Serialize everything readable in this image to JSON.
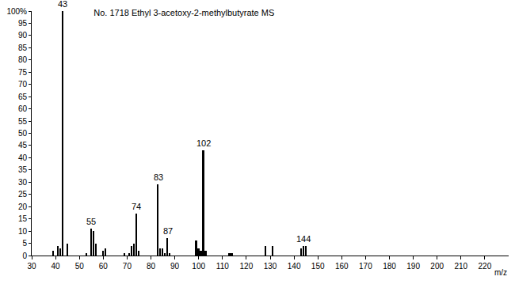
{
  "chart_data": {
    "type": "bar",
    "title": "No. 1718 Ethyl 3-acetoxy-2-methylbutyrate MS",
    "x_label": "m/z",
    "x": [
      39,
      41,
      42,
      43,
      45,
      53,
      55,
      56,
      57,
      60,
      61,
      69,
      71,
      72,
      73,
      74,
      75,
      83,
      84,
      85,
      86,
      87,
      88,
      99,
      100,
      101,
      102,
      103,
      113,
      114,
      128,
      131,
      143,
      144,
      145
    ],
    "values": [
      2,
      4,
      3,
      100,
      5,
      1,
      11,
      10,
      5,
      2,
      3,
      1,
      1,
      4,
      5,
      17,
      2,
      29,
      3,
      3,
      1,
      7,
      1,
      6,
      3,
      2,
      43,
      2,
      1,
      1,
      4,
      4,
      3,
      4,
      4
    ],
    "color": "#000000",
    "annotations": [
      {
        "x": 43,
        "text": "43"
      },
      {
        "x": 55,
        "text": "55"
      },
      {
        "x": 74,
        "text": "74"
      },
      {
        "x": 83,
        "text": "83"
      },
      {
        "x": 87,
        "text": "87"
      },
      {
        "x": 102,
        "text": "102"
      },
      {
        "x": 144,
        "text": "144"
      }
    ],
    "xlim": [
      30,
      230
    ],
    "xticks": [
      30,
      40,
      50,
      60,
      70,
      80,
      90,
      100,
      110,
      120,
      130,
      140,
      150,
      160,
      170,
      180,
      190,
      200,
      210,
      220
    ],
    "ylim": [
      0,
      100
    ],
    "yticks": [
      0,
      5,
      10,
      15,
      20,
      25,
      30,
      35,
      40,
      45,
      50,
      55,
      60,
      65,
      70,
      75,
      80,
      85,
      90,
      95,
      {
        "value": 100,
        "label": "100%"
      }
    ],
    "grid": false
  }
}
